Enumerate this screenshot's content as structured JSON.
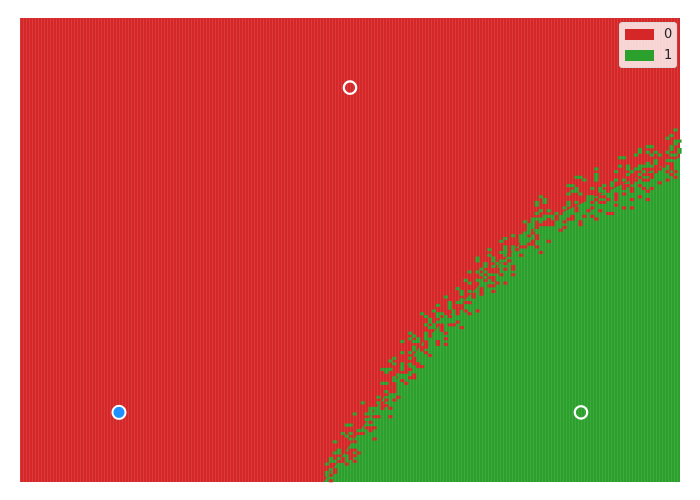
{
  "chart_data": {
    "type": "heatmap",
    "title": "",
    "xlabel": "",
    "ylabel": "",
    "grid": false,
    "xlim": [
      0,
      1
    ],
    "ylim": [
      0,
      1
    ],
    "classes": [
      {
        "label": "0",
        "color": "#d62728"
      },
      {
        "label": "1",
        "color": "#2ca02c"
      }
    ],
    "decision_boundary": {
      "class_below_right": "1",
      "points": [
        [
          0.46,
          0.0
        ],
        [
          0.61,
          0.3
        ],
        [
          0.79,
          0.56
        ],
        [
          1.0,
          0.7
        ]
      ],
      "noise_band": 0.03
    },
    "points": [
      {
        "x": 0.5,
        "y": 0.85,
        "style": "hollow",
        "color": "#ffffff"
      },
      {
        "x": 0.15,
        "y": 0.15,
        "style": "filled",
        "color": "#1e90ff"
      },
      {
        "x": 0.85,
        "y": 0.15,
        "style": "hollow",
        "color": "#ffffff"
      }
    ],
    "legend": {
      "position": "top-right"
    }
  }
}
